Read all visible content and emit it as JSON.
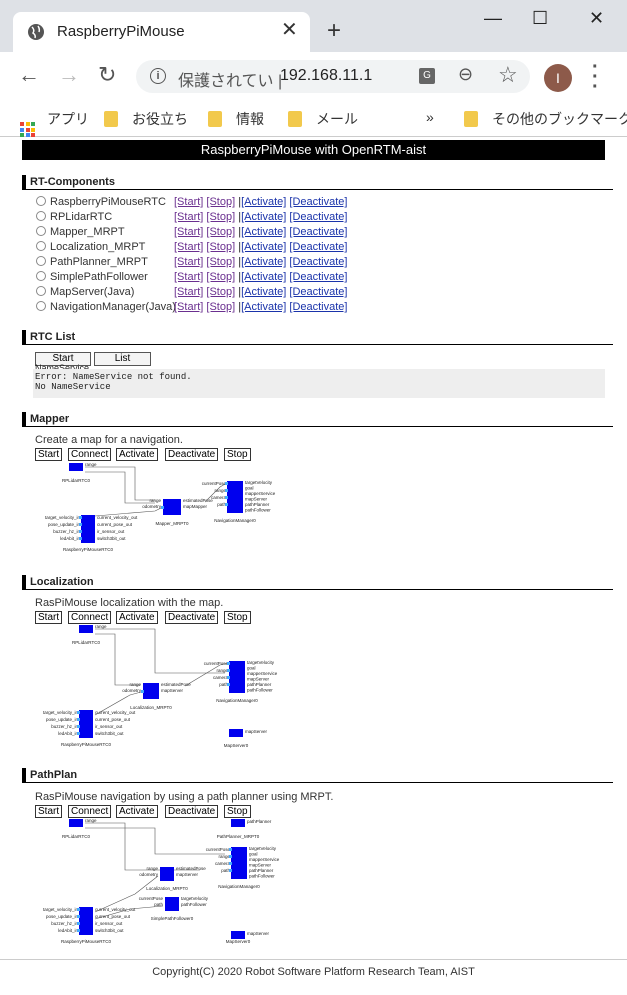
{
  "browser": {
    "tab_title": "RaspberryPiMouse",
    "new_tab_icon": "+",
    "secure_text": "保護されてい |",
    "url": "192.168.11.1",
    "avatar_letter": "I",
    "bookmarks": {
      "apps": "アプリ",
      "item1": "お役立ち",
      "item2": "情報",
      "item3": "メール",
      "overflow": "»",
      "other": "その他のブックマーク"
    }
  },
  "page": {
    "banner": "RaspberryPiMouse with OpenRTM-aist",
    "rtc_section": "RT-Components",
    "components": [
      {
        "name": "RaspberryPiMouseRTC"
      },
      {
        "name": "RPLidarRTC"
      },
      {
        "name": "Mapper_MRPT"
      },
      {
        "name": "Localization_MRPT"
      },
      {
        "name": "PathPlanner_MRPT"
      },
      {
        "name": "SimplePathFollower"
      },
      {
        "name": "MapServer(Java)"
      },
      {
        "name": "NavigationManager(Java)"
      }
    ],
    "links": {
      "start": "[Start]",
      "stop": "[Stop]",
      "sep": " |",
      "activate": "[Activate]",
      "deactivate": "[Deactivate]"
    },
    "rtc_list_section": "RTC List",
    "list_buttons": {
      "start": "Start",
      "list": "List"
    },
    "nameservice_label": "NameService",
    "console": "Error: NameService not found.\nNo NameService",
    "mapper_section": "Mapper",
    "mapper_desc": "Create a map for a navigation.",
    "localization_section": "Localization",
    "localization_desc": "RasPiMouse localization with the map.",
    "pathplan_section": "PathPlan",
    "pathplan_desc": "RasPiMouse navigation by using a path planner using MRPT.",
    "controls": {
      "start": "Start",
      "connect": "Connect",
      "activate": "Activate",
      "deactivate": "Deactivate",
      "stop": "Stop"
    },
    "footer": "Copyright(C) 2020 Robot Software Platform Research Team, AIST"
  },
  "diagram_labels": {
    "rplidar": "RPLidarRTC0",
    "range": "range",
    "mapper": "Mapper_MRPT0",
    "localization": "Localization_MRPT0",
    "navmgr": "NavigationManager0",
    "raspi": "RaspberryPiMouseRTC0",
    "mapserver": "MapServer0",
    "pathplanner": "PathPlanner_MRPT0",
    "follower": "SimplePathFollower0",
    "odometry": "odometry",
    "estimated_pose": "estimatedPose",
    "map_mapper": "mapMapper",
    "map_server": "mapServer",
    "current_pose": "currentPose",
    "camera": "camera",
    "path": "path",
    "target_velocity": "targetVelocity",
    "goal": "goal",
    "mapper_service": "mapperService",
    "path_planner": "pathPlanner",
    "path_follower": "pathFollower",
    "raspi_in": [
      "target_velocity_in",
      "pose_update_in",
      "buzzer_hz_in",
      "ledAbit_in"
    ],
    "raspi_out": [
      "current_velocity_out",
      "current_pose_out",
      "ir_sensor_out",
      "switch3bit_out"
    ]
  },
  "colors": {
    "component": "#0000ee",
    "port_in": "#44aaff",
    "banner": "#000000",
    "link": "#6a2f8f"
  }
}
